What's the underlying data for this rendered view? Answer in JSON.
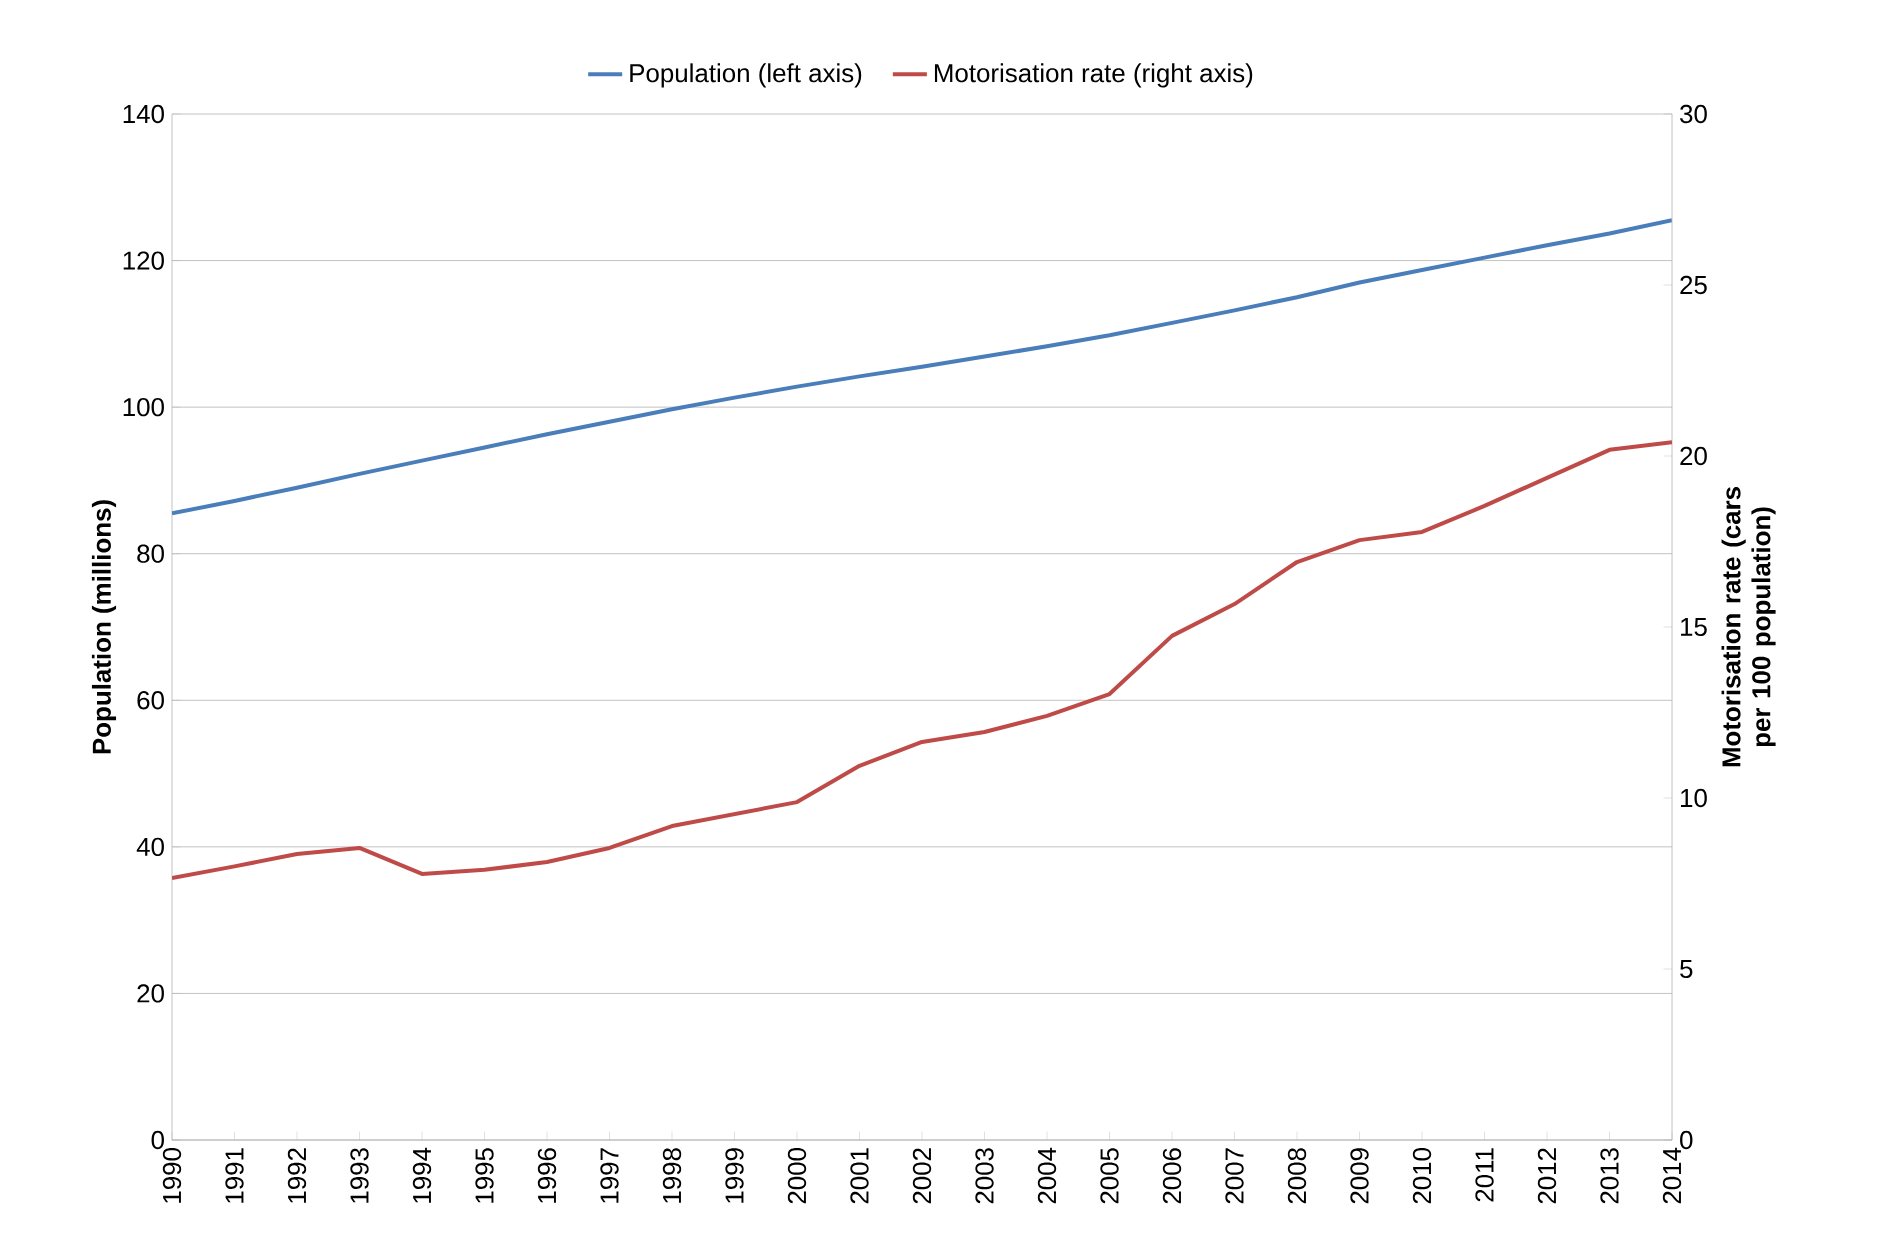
{
  "chart_data": {
    "type": "line",
    "categories": [
      "1990",
      "1991",
      "1992",
      "1993",
      "1994",
      "1995",
      "1996",
      "1997",
      "1998",
      "1999",
      "2000",
      "2001",
      "2002",
      "2003",
      "2004",
      "2005",
      "2006",
      "2007",
      "2008",
      "2009",
      "2010",
      "2011",
      "2012",
      "2013",
      "2014"
    ],
    "ylabel": "Population (millions)",
    "y2label": "Motorisation rate (cars per 100 population)",
    "ylim": [
      0,
      140
    ],
    "yticks": [
      0,
      20,
      40,
      60,
      80,
      100,
      120,
      140
    ],
    "y2lim": [
      0,
      30
    ],
    "y2ticks": [
      0,
      5,
      10,
      15,
      20,
      25,
      30
    ],
    "grid": "y",
    "legend": "top",
    "series": [
      {
        "name": "Population (left axis)",
        "color": "#4a7ebb",
        "values": [
          85.5,
          87.2,
          89.0,
          90.9,
          92.7,
          94.5,
          96.3,
          98.0,
          99.7,
          101.3,
          102.8,
          104.2,
          105.5,
          106.9,
          108.3,
          109.8,
          111.5,
          113.2,
          115.0,
          117.0,
          118.7,
          120.4,
          122.1,
          123.7,
          125.5
        ]
      },
      {
        "name": "Motorisation rate (right axis)",
        "color": "#be4b48",
        "axis": "y2",
        "values": [
          7.66,
          8.0,
          8.36,
          8.54,
          7.78,
          7.9,
          8.13,
          8.54,
          9.18,
          9.53,
          9.88,
          10.94,
          11.64,
          11.93,
          12.4,
          13.04,
          14.74,
          15.67,
          16.9,
          17.54,
          17.78,
          18.54,
          19.36,
          20.18,
          20.4
        ]
      }
    ]
  }
}
